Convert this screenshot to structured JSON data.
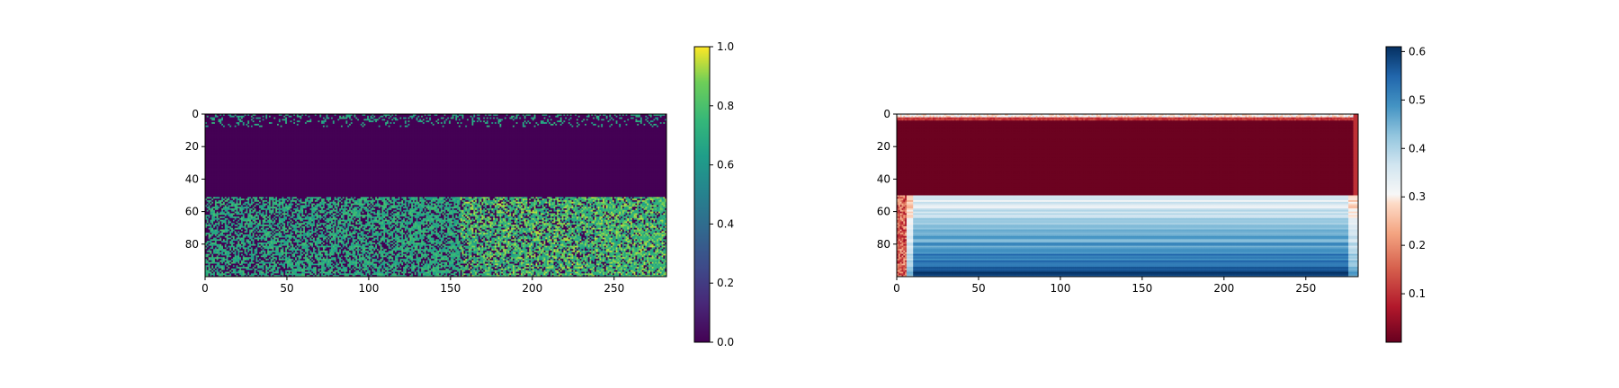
{
  "chart_data": [
    {
      "type": "heatmap",
      "title": "",
      "xlabel": "",
      "ylabel": "",
      "xlim": [
        0,
        282
      ],
      "ylim": [
        100,
        0
      ],
      "xticks": [
        0,
        50,
        100,
        150,
        200,
        250
      ],
      "yticks": [
        0,
        20,
        40,
        60,
        80
      ],
      "colormap": "viridis",
      "colorbar": {
        "range": [
          0.0,
          1.0
        ],
        "ticks": [
          "0.0",
          "0.2",
          "0.4",
          "0.6",
          "0.8",
          "1.0"
        ]
      },
      "rows": 100,
      "cols": 282,
      "description_of_values": {
        "rows_0_to_7": "sparse binary, mostly 0 with scattered 0.6-0.7",
        "rows_8_to_50": "all 0",
        "rows_51_to_99": "noisy mix of 0 and ~0.6-0.9, increasing toward right"
      }
    },
    {
      "type": "heatmap",
      "title": "",
      "xlabel": "",
      "ylabel": "",
      "xlim": [
        0,
        282
      ],
      "ylim": [
        100,
        0
      ],
      "xticks": [
        0,
        50,
        100,
        150,
        200,
        250
      ],
      "yticks": [
        0,
        20,
        40,
        60,
        80
      ],
      "colormap": "RdBu",
      "colorbar": {
        "range": [
          0.0,
          0.61
        ],
        "ticks": [
          "0.1",
          "0.2",
          "0.3",
          "0.4",
          "0.5",
          "0.6"
        ]
      },
      "rows": 100,
      "cols": 282,
      "description_of_values": {
        "rows_0_to_49": "near 0 (dark red)",
        "rows_50_to_99": "increasing from ~0.3 to ~0.6 with striping"
      }
    }
  ]
}
